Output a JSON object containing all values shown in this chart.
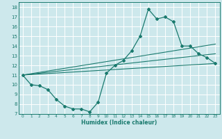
{
  "title": "",
  "xlabel": "Humidex (Indice chaleur)",
  "ylabel": "",
  "bg_color": "#cde8ec",
  "grid_color": "#ffffff",
  "line_color": "#1a7a6e",
  "xlim": [
    -0.5,
    23.5
  ],
  "ylim": [
    7,
    18.5
  ],
  "xticks": [
    0,
    1,
    2,
    3,
    4,
    5,
    6,
    7,
    8,
    9,
    10,
    11,
    12,
    13,
    14,
    15,
    16,
    17,
    18,
    19,
    20,
    21,
    22,
    23
  ],
  "yticks": [
    7,
    8,
    9,
    10,
    11,
    12,
    13,
    14,
    15,
    16,
    17,
    18
  ],
  "line1_x": [
    0,
    1,
    2,
    3,
    4,
    5,
    6,
    7,
    8,
    9,
    10,
    11,
    12,
    13,
    14,
    15,
    16,
    17,
    18,
    19,
    20,
    21,
    22,
    23
  ],
  "line1_y": [
    11,
    10,
    9.9,
    9.5,
    8.5,
    7.8,
    7.5,
    7.5,
    7.2,
    8.2,
    11.2,
    12,
    12.5,
    13.5,
    15.0,
    17.8,
    16.8,
    17.0,
    16.5,
    14.0,
    14.0,
    13.2,
    12.8,
    12.2
  ],
  "line2_x": [
    0,
    23
  ],
  "line2_y": [
    11,
    12.2
  ],
  "line3_x": [
    0,
    23
  ],
  "line3_y": [
    11,
    13.2
  ],
  "line4_x": [
    0,
    23
  ],
  "line4_y": [
    11,
    14.2
  ]
}
